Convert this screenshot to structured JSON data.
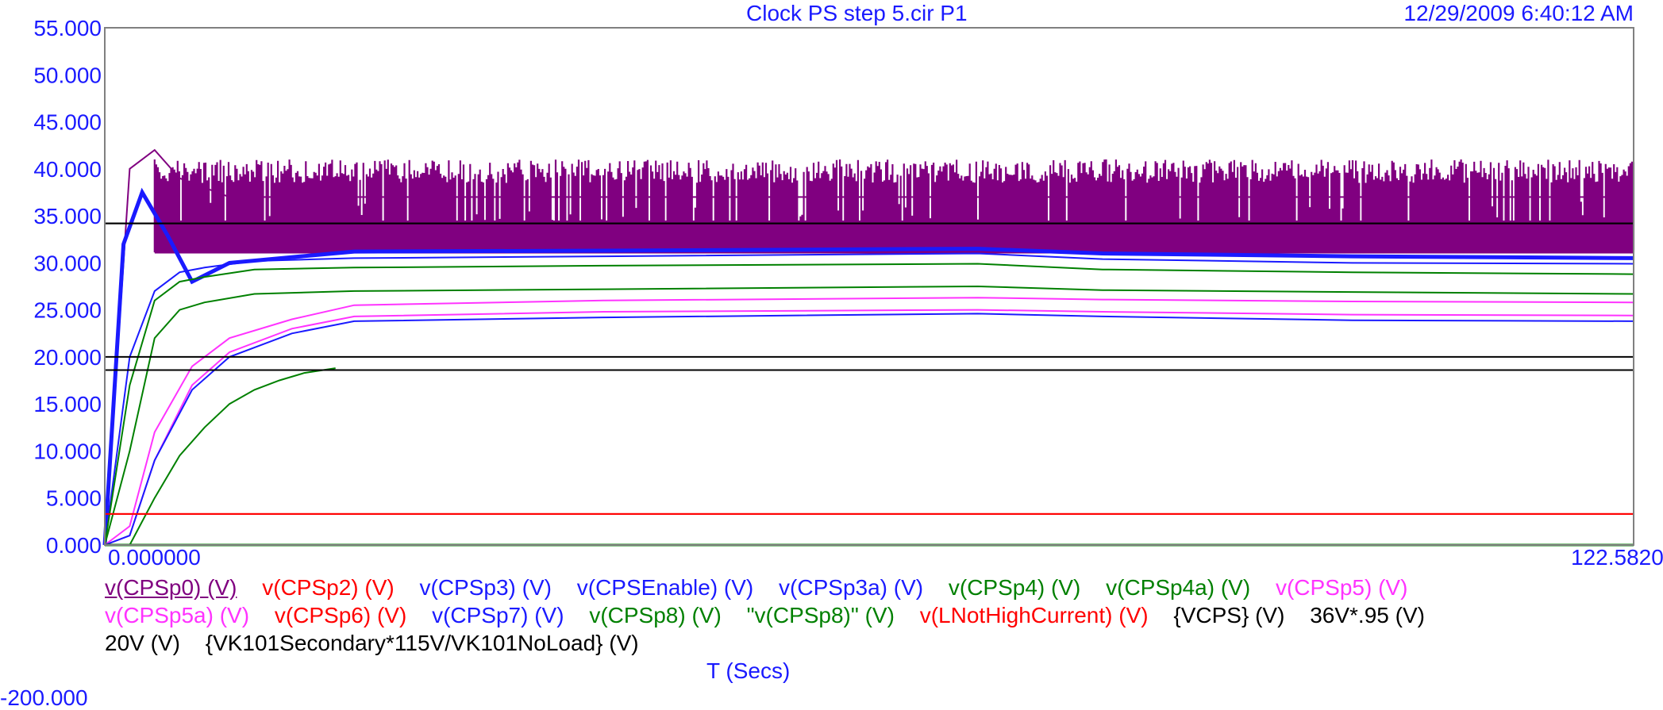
{
  "header": {
    "title": "Clock PS step 5.cir P1",
    "timestamp": "12/29/2009 6:40:12 AM"
  },
  "bottom_cut_text": "-200.000",
  "colors": {
    "axis_text": "#1a1aff",
    "purple": "#800080",
    "red": "#ff0000",
    "blue": "#1a1aff",
    "green": "#008000",
    "magenta": "#ff33ff",
    "black": "#000000"
  },
  "chart_data": {
    "type": "line",
    "xlabel": "T (Secs)",
    "xlim": [
      0,
      122.582
    ],
    "ylim": [
      0,
      55
    ],
    "x_tick_labels": [
      "0.000000",
      "122.5820"
    ],
    "y_tick_labels": [
      "0.000",
      "5.000",
      "10.000",
      "15.000",
      "20.000",
      "25.000",
      "30.000",
      "35.000",
      "40.000",
      "45.000",
      "50.000",
      "55.000"
    ],
    "grid": false,
    "legend_position": "bottom",
    "series": [
      {
        "name": "v(CPSp0) (V)",
        "color": "#800080",
        "x": [
          0,
          2,
          4,
          6,
          10,
          20,
          40,
          60,
          80,
          100,
          122.582
        ],
        "y": [
          0,
          40,
          42,
          39,
          37,
          37,
          37,
          37,
          37,
          37,
          37
        ],
        "band_low": 31,
        "band_high": 41
      },
      {
        "name": "v(CPSp2) (V)",
        "color": "#ff0000",
        "x": [
          0,
          122.582
        ],
        "y": [
          3.3,
          3.3
        ]
      },
      {
        "name": "v(CPSp3) (V)",
        "color": "#1a1aff",
        "x": [
          0,
          0.5,
          122.582
        ],
        "y": [
          0,
          0,
          0
        ]
      },
      {
        "name": "v(CPSEnable) (V)",
        "color": "#1a1aff",
        "x": [
          0,
          1.5,
          3,
          5,
          7,
          10,
          20,
          40,
          70,
          80,
          100,
          122.582
        ],
        "y": [
          0,
          32,
          37.5,
          33,
          28,
          30,
          31.2,
          31.3,
          31.5,
          31,
          30.7,
          30.5
        ]
      },
      {
        "name": "v(CPSp3a) (V)",
        "color": "#1a1aff",
        "x": [
          0,
          2,
          4,
          6,
          8,
          12,
          20,
          40,
          70,
          80,
          100,
          122.582
        ],
        "y": [
          0,
          20,
          27,
          29,
          29.5,
          30.2,
          30.5,
          30.7,
          31,
          30.4,
          30,
          29.9
        ]
      },
      {
        "name": "v(CPSp4) (V)",
        "color": "#008000",
        "x": [
          0,
          2,
          4,
          6,
          8,
          12,
          20,
          40,
          70,
          80,
          100,
          122.582
        ],
        "y": [
          0,
          17,
          26,
          28,
          28.5,
          29.3,
          29.5,
          29.7,
          29.9,
          29.3,
          29,
          28.8
        ]
      },
      {
        "name": "v(CPSp4a) (V)",
        "color": "#008000",
        "x": [
          0,
          2,
          4,
          6,
          8,
          12,
          20,
          40,
          70,
          80,
          100,
          122.582
        ],
        "y": [
          0,
          10,
          22,
          25,
          25.8,
          26.7,
          27,
          27.2,
          27.5,
          27.1,
          26.9,
          26.7
        ]
      },
      {
        "name": "v(CPSp5) (V)",
        "color": "#ff33ff",
        "x": [
          0,
          2,
          4,
          7,
          10,
          15,
          20,
          40,
          70,
          80,
          100,
          122.582
        ],
        "y": [
          0,
          2,
          12,
          19,
          22,
          24,
          25.5,
          26,
          26.3,
          26.1,
          25.9,
          25.8
        ]
      },
      {
        "name": "v(CPSp5a) (V)",
        "color": "#ff33ff",
        "x": [
          0,
          2,
          4,
          7,
          10,
          15,
          20,
          40,
          70,
          80,
          100,
          122.582
        ],
        "y": [
          0,
          1,
          9,
          17,
          20.5,
          23,
          24.3,
          24.8,
          25,
          24.8,
          24.5,
          24.4
        ]
      },
      {
        "name": "v(CPSp6) (V)",
        "color": "#ff0000",
        "x": [
          0,
          122.582
        ],
        "y": [
          0,
          0
        ]
      },
      {
        "name": "v(CPSp7) (V)",
        "color": "#1a1aff",
        "x": [
          0,
          2,
          4,
          7,
          10,
          15,
          20,
          40,
          70,
          80,
          100,
          122.582
        ],
        "y": [
          0,
          1,
          9,
          16.5,
          20,
          22.5,
          23.8,
          24.2,
          24.6,
          24.3,
          23.9,
          23.8
        ]
      },
      {
        "name": "v(CPSp8) (V)",
        "color": "#008000",
        "x": [
          0,
          2,
          4,
          6,
          8,
          10,
          12,
          14,
          16,
          18.5
        ],
        "y": [
          0,
          0,
          5,
          9.5,
          12.5,
          15,
          16.5,
          17.5,
          18.3,
          18.8
        ]
      },
      {
        "name": "\"v(CPSp8)\" (V)",
        "color": "#008000",
        "x": [
          0,
          122.582
        ],
        "y": [
          0,
          0
        ]
      },
      {
        "name": "v(LNotHighCurrent) (V)",
        "color": "#ff0000",
        "x": [
          0,
          122.582
        ],
        "y": [
          3.3,
          3.3
        ]
      },
      {
        "name": "{VCPS} (V)",
        "color": "#000000",
        "x": [
          0,
          122.582
        ],
        "y": [
          34.2,
          34.2
        ]
      },
      {
        "name": "36V*.95 (V)",
        "color": "#000000",
        "x": [
          0,
          122.582
        ],
        "y": [
          34.2,
          34.2
        ]
      },
      {
        "name": "20V (V)",
        "color": "#000000",
        "x": [
          0,
          122.582
        ],
        "y": [
          20,
          20
        ]
      },
      {
        "name": "{VK101Secondary*115V/VK101NoLoad} (V)",
        "color": "#000000",
        "x": [
          0,
          122.582
        ],
        "y": [
          18.6,
          18.6
        ]
      }
    ]
  }
}
